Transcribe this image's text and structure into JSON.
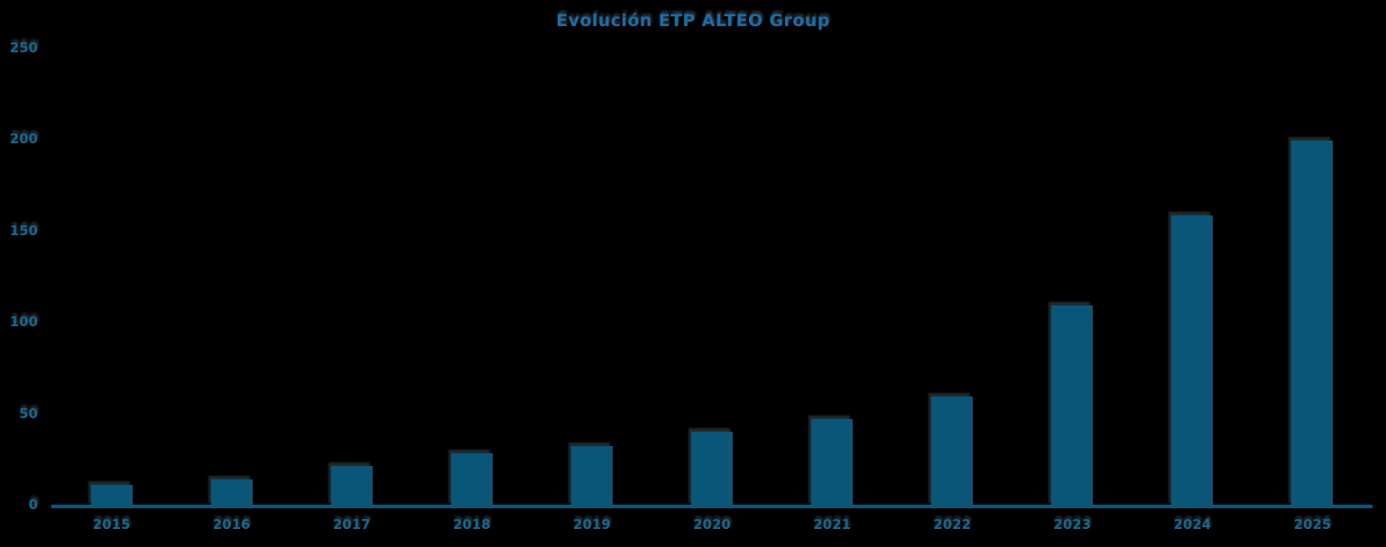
{
  "chart_data": {
    "type": "bar",
    "title": "Evolución ETP ALTEO Group",
    "categories": [
      "2015",
      "2016",
      "2017",
      "2018",
      "2019",
      "2020",
      "2021",
      "2022",
      "2023",
      "2024",
      "2025"
    ],
    "values": [
      12,
      15,
      22,
      29,
      33,
      41,
      48,
      60,
      110,
      159,
      200
    ],
    "xlabel": "",
    "ylabel": "",
    "y_ticks": [
      0,
      50,
      100,
      150,
      200,
      250
    ],
    "ylim": [
      0,
      250
    ],
    "grid": false,
    "legend": "none",
    "colors": {
      "background": "#000000",
      "bar": "#0a5678",
      "axis_line": "#0a5678",
      "title_text": "#1a6da8",
      "tick_text": "#136792"
    }
  }
}
